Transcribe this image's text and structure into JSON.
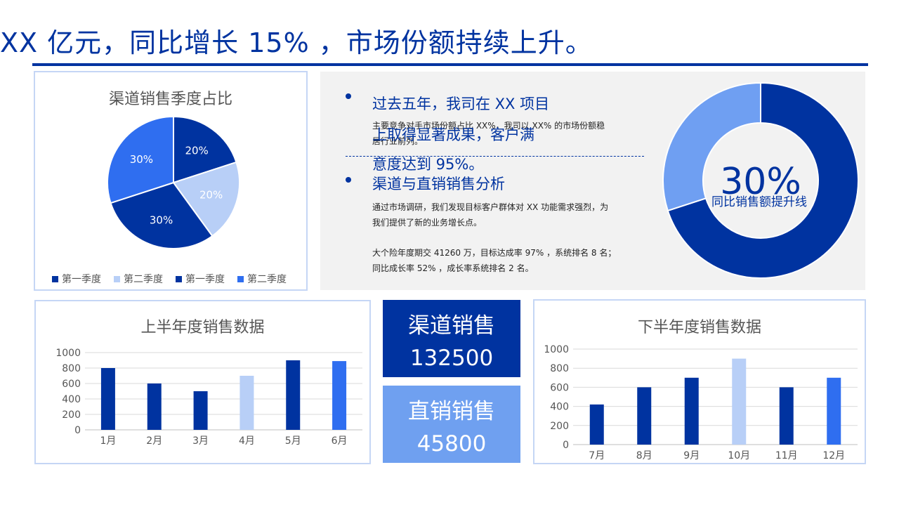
{
  "header": {
    "title": "XX 亿元，同比增长 15% ，市场份额持续上升。"
  },
  "colors": {
    "dark_blue": "#0033a0",
    "light_blue": "#b8cff7",
    "mid_blue": "#2f6ef0",
    "pale_blue": "#6fa0f0",
    "donut_light": "#6f9ff2"
  },
  "pie_chart": {
    "chart_data": {
      "type": "pie",
      "title": "渠道销售季度占比",
      "labels": [
        "第一季度",
        "第二季度",
        "第一季度",
        "第二季度"
      ],
      "values": [
        20,
        20,
        30,
        30
      ],
      "value_labels": [
        "20%",
        "20%",
        "30%",
        "30%"
      ],
      "colors": [
        "#0033a0",
        "#b8cff7",
        "#0033a0",
        "#2f6ef0"
      ],
      "legend": "bottom"
    }
  },
  "highlights": {
    "item1": {
      "heading_line1": "过去五年，我司在 XX 项目",
      "heading_line2": "上取得显著成果，客户满",
      "heading_line3": "意度达到 95%。",
      "body_line1": "主要竞争对手市场份额占比 XX%，我司以 XX% 的市场份额稳",
      "body_line2": "居行业前列。"
    },
    "item2": {
      "heading": "渠道与直销销售分析",
      "body_line1": "通过市场调研，我们发现目标客户群体对 XX 功能需求强烈，为",
      "body_line2": "我们提供了新的业务增长点。",
      "body_line3": "大个险年度期交 41260 万，目标达成率 97% ，系统排名 8 名；",
      "body_line4": "同比成长率 52% ，成长率系统排名 2 名。"
    }
  },
  "donut": {
    "percent_label": "30%",
    "caption": "同比销售额提升线",
    "value": 30
  },
  "kpis": {
    "channel": {
      "label": "渠道销售",
      "value": "132500"
    },
    "direct": {
      "label": "直销销售",
      "value": "45800"
    }
  },
  "bar_h1": {
    "chart_data": {
      "type": "bar",
      "title": "上半年度销售数据",
      "categories": [
        "1月",
        "2月",
        "3月",
        "4月",
        "5月",
        "6月"
      ],
      "values": [
        800,
        600,
        500,
        700,
        900,
        890
      ],
      "colors": [
        "#0033a0",
        "#0033a0",
        "#0033a0",
        "#b8cff7",
        "#0033a0",
        "#2f6ef0"
      ],
      "ylim": [
        0,
        1000
      ],
      "yticks": [
        0,
        200,
        400,
        600,
        800,
        1000
      ],
      "grid": true
    }
  },
  "bar_h2": {
    "chart_data": {
      "type": "bar",
      "title": "下半年度销售数据",
      "categories": [
        "7月",
        "8月",
        "9月",
        "10月",
        "11月",
        "12月"
      ],
      "values": [
        420,
        600,
        700,
        900,
        600,
        700
      ],
      "colors": [
        "#0033a0",
        "#0033a0",
        "#0033a0",
        "#b8cff7",
        "#0033a0",
        "#2f6ef0"
      ],
      "ylim": [
        0,
        1000
      ],
      "yticks": [
        0,
        200,
        400,
        600,
        800,
        1000
      ],
      "grid": true
    }
  }
}
